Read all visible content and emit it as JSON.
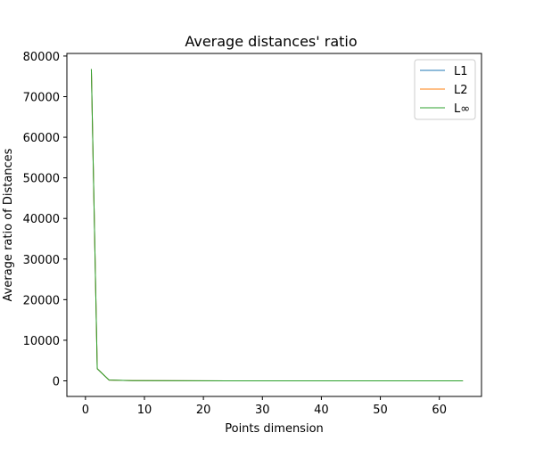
{
  "chart_data": {
    "type": "line",
    "title": "Average distances' ratio",
    "xlabel": "Points dimension",
    "ylabel": "Average ratio of Distances",
    "xlim": [
      -3.15,
      67.15
    ],
    "ylim": [
      -3840,
      80640
    ],
    "xticks": [
      0,
      10,
      20,
      30,
      40,
      50,
      60
    ],
    "yticks": [
      0,
      10000,
      20000,
      30000,
      40000,
      50000,
      60000,
      70000,
      80000
    ],
    "grid": false,
    "legend_position": "top-right",
    "series": [
      {
        "name": "L1",
        "color": "#1f77b4",
        "x": [
          1,
          2,
          4,
          8,
          16,
          32,
          64
        ],
        "y": [
          76800,
          3000,
          200,
          60,
          20,
          5,
          2
        ]
      },
      {
        "name": "L2",
        "color": "#ff7f0e",
        "x": [
          1,
          2,
          4,
          8,
          16,
          32,
          64
        ],
        "y": [
          76800,
          3000,
          200,
          60,
          20,
          5,
          2
        ]
      },
      {
        "name": "L∞",
        "color": "#2ca02c",
        "x": [
          1,
          2,
          4,
          8,
          16,
          32,
          64
        ],
        "y": [
          76800,
          3000,
          200,
          60,
          20,
          5,
          2
        ]
      }
    ]
  }
}
